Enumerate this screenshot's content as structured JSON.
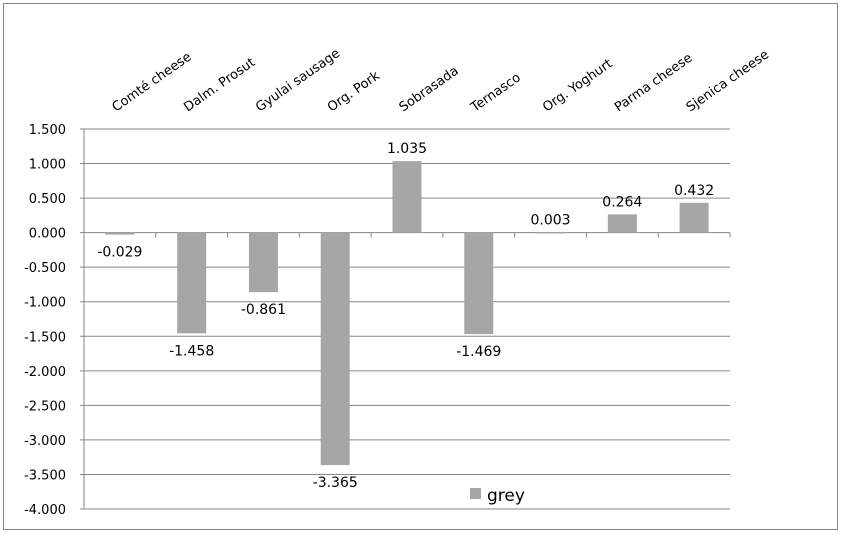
{
  "chart_data": {
    "type": "bar",
    "categories": [
      "Comté cheese",
      "Dalm. Prosut",
      "Gyulai sausage",
      "Org. Pork",
      "Sobrasada",
      "Ternasco",
      "Org. Yoghurt",
      "Parma cheese",
      "Sjenica cheese"
    ],
    "series": [
      {
        "name": "grey",
        "values": [
          -0.029,
          -1.458,
          -0.861,
          -3.365,
          1.035,
          -1.469,
          0.003,
          0.264,
          0.432
        ],
        "labels": [
          "-0.029",
          "-1.458",
          "-0.861",
          "-3.365",
          "1.035",
          "-1.469",
          "0.003",
          "0.264",
          "0.432"
        ],
        "color": "#a6a6a6"
      }
    ],
    "ylim": [
      -4.0,
      1.5
    ],
    "yticks": [
      "1.500",
      "1.000",
      "0.500",
      "0.000",
      "-0.500",
      "-1.000",
      "-1.500",
      "-2.000",
      "-2.500",
      "-3.000",
      "-3.500",
      "-4.000"
    ],
    "grid": true,
    "gridColor": "#868686",
    "legend": "bottom-center",
    "xaxis_labels_position": "top-rotated"
  }
}
